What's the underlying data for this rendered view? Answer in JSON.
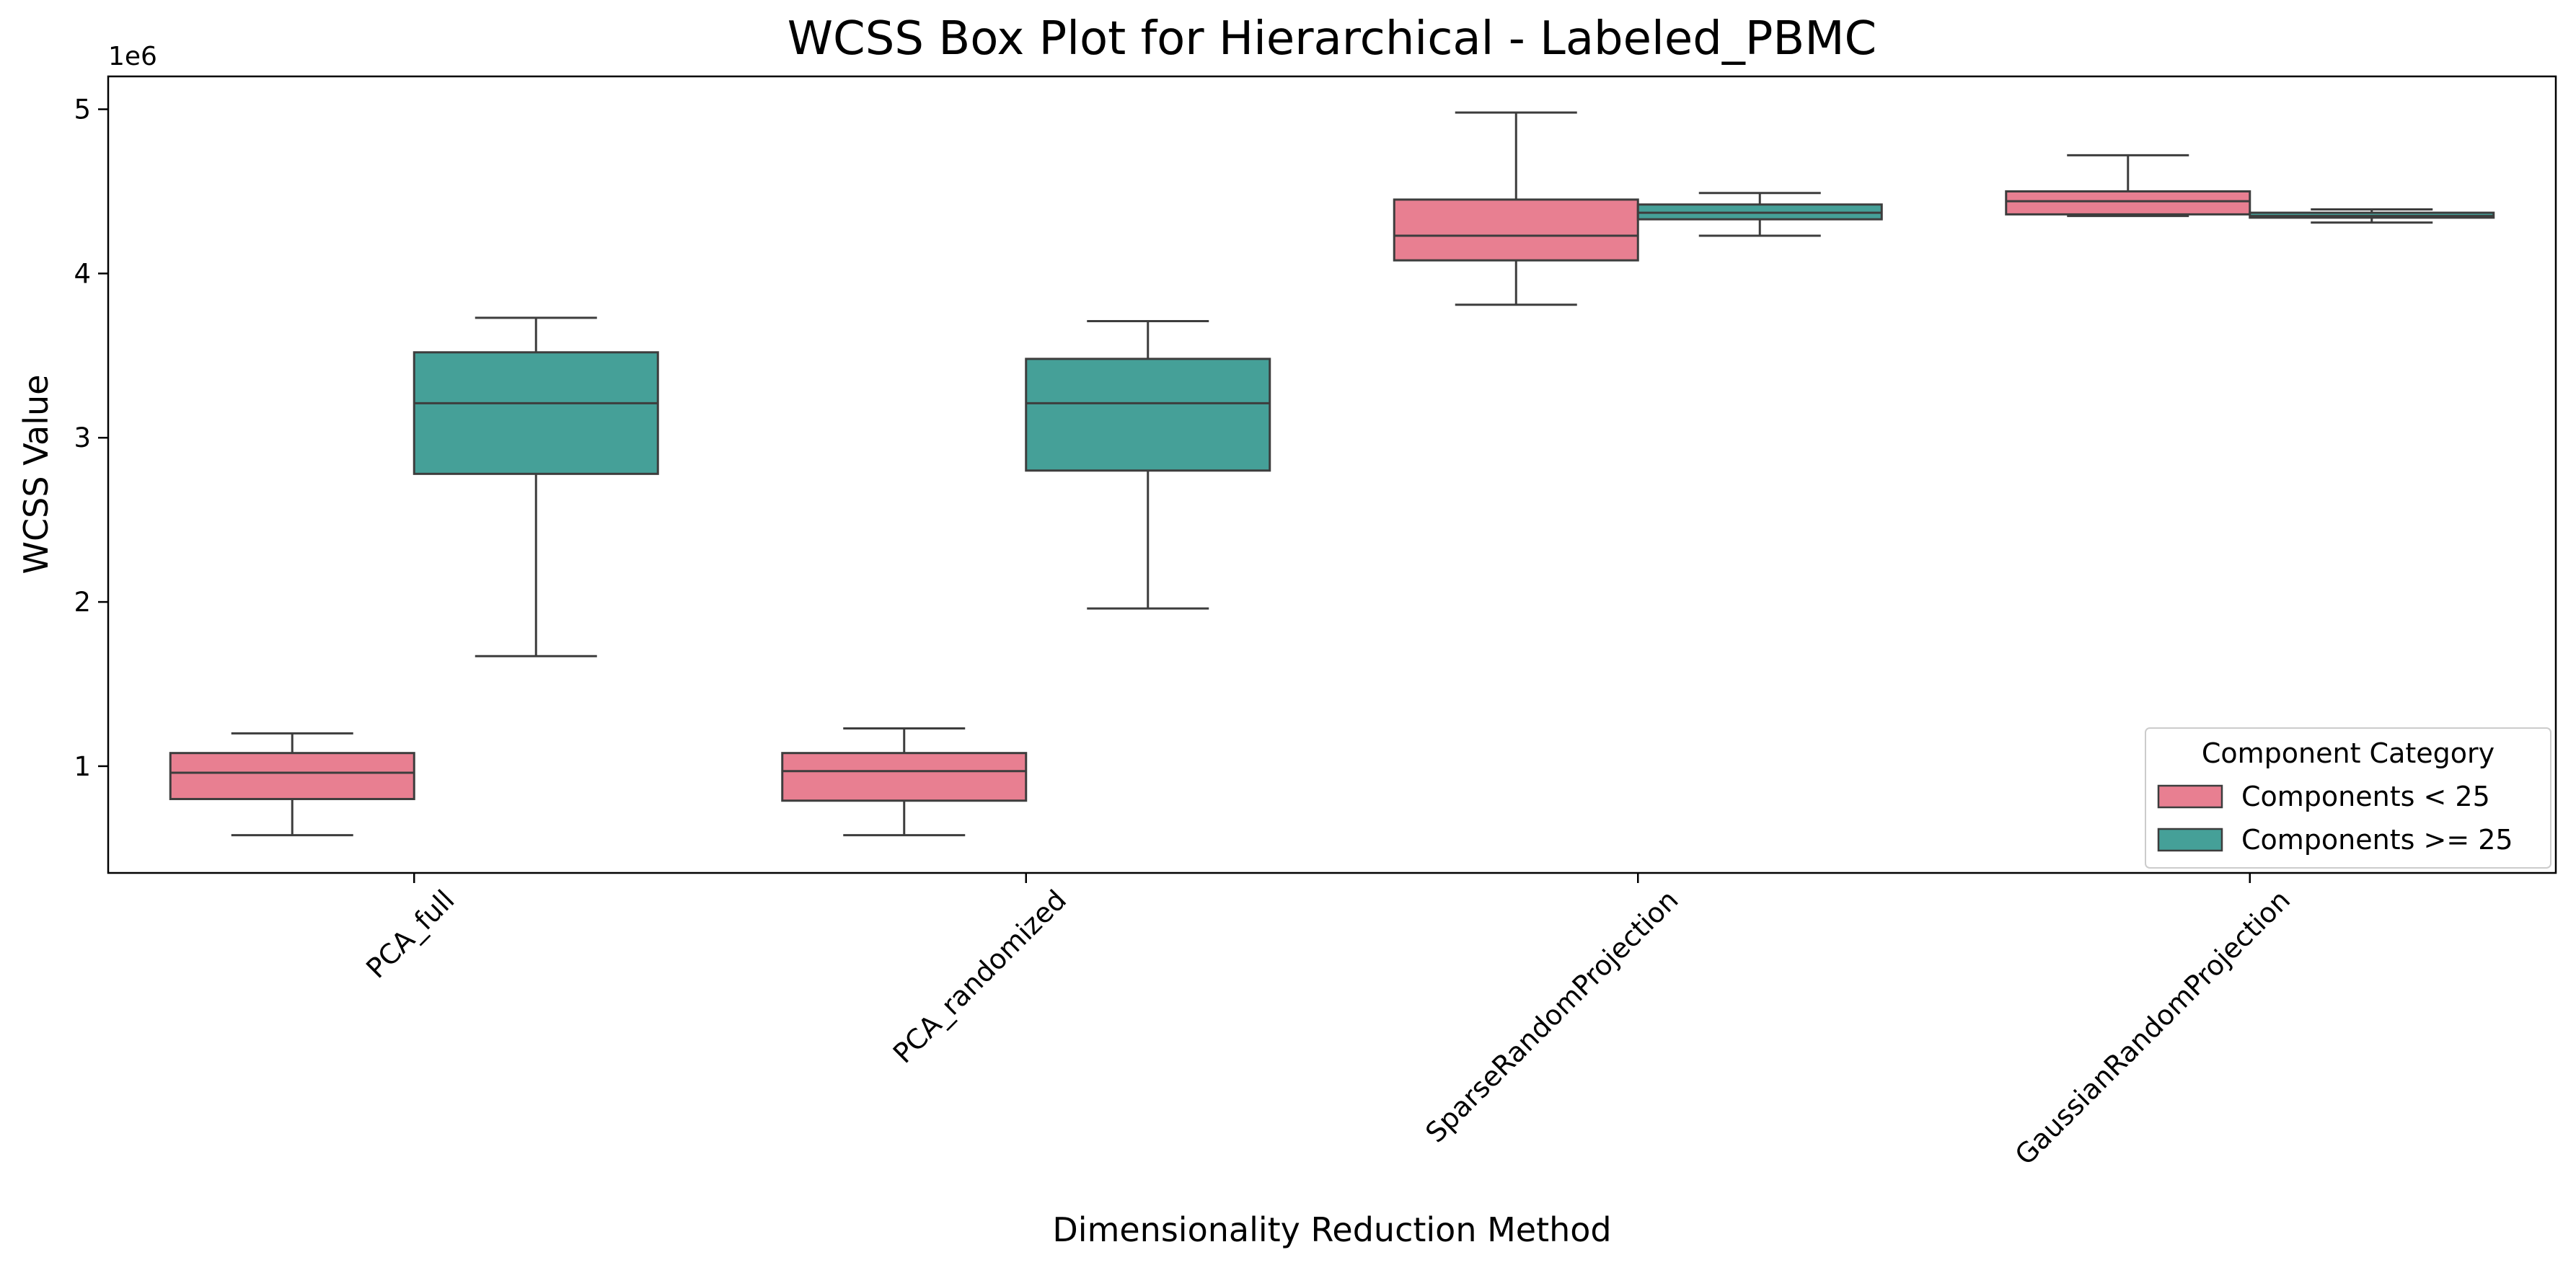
{
  "chart_data": {
    "type": "box",
    "title": "WCSS Box Plot for Hierarchical - Labeled_PBMC",
    "xlabel": "Dimensionality Reduction Method",
    "ylabel": "WCSS Value",
    "y_scale_label": "1e6",
    "ylim": [
      0.35,
      5.2
    ],
    "y_ticks": [
      1,
      2,
      3,
      4,
      5
    ],
    "y_tick_labels": [
      "1",
      "2",
      "3",
      "4",
      "5"
    ],
    "grid": false,
    "legend_position": "lower-right",
    "legend_title": "Component Category",
    "categories": [
      "PCA_full",
      "PCA_randomized",
      "SparseRandomProjection",
      "GaussianRandomProjection"
    ],
    "series": [
      {
        "name": "Components < 25",
        "color": "#e87f91",
        "boxes": [
          {
            "whislo": 0.58,
            "q1": 0.8,
            "med": 0.96,
            "q3": 1.08,
            "whishi": 1.2
          },
          {
            "whislo": 0.58,
            "q1": 0.79,
            "med": 0.97,
            "q3": 1.08,
            "whishi": 1.23
          },
          {
            "whislo": 3.81,
            "q1": 4.08,
            "med": 4.23,
            "q3": 4.45,
            "whishi": 4.98
          },
          {
            "whislo": 4.35,
            "q1": 4.36,
            "med": 4.44,
            "q3": 4.5,
            "whishi": 4.72
          }
        ]
      },
      {
        "name": "Components >= 25",
        "color": "#45a098",
        "boxes": [
          {
            "whislo": 1.67,
            "q1": 2.78,
            "med": 3.21,
            "q3": 3.52,
            "whishi": 3.73
          },
          {
            "whislo": 1.96,
            "q1": 2.8,
            "med": 3.21,
            "q3": 3.48,
            "whishi": 3.71
          },
          {
            "whislo": 4.23,
            "q1": 4.33,
            "med": 4.37,
            "q3": 4.42,
            "whishi": 4.49
          },
          {
            "whislo": 4.31,
            "q1": 4.34,
            "med": 4.35,
            "q3": 4.37,
            "whishi": 4.39
          }
        ]
      }
    ]
  }
}
